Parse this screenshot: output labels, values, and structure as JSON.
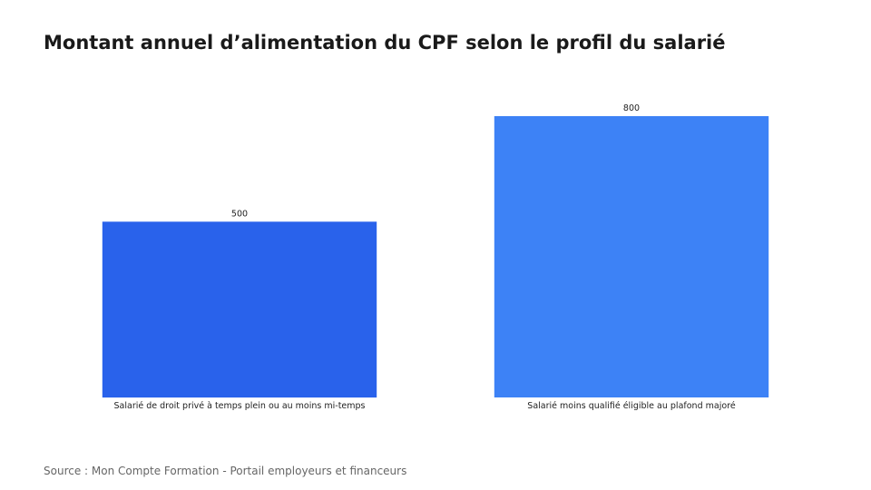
{
  "chart_data": {
    "type": "bar",
    "title": "Montant annuel d’alimentation du CPF selon le profil du salarié",
    "xlabel": "",
    "ylabel": "",
    "categories": [
      "Salarié de droit privé à temps plein ou au moins mi-temps",
      "Salarié moins qualifié éligible au plafond majoré"
    ],
    "values": [
      500,
      800
    ],
    "data_labels": [
      "500",
      "800"
    ],
    "colors": [
      "#2962eb",
      "#3d82f6"
    ],
    "ylim": [
      0,
      800
    ],
    "grid": false,
    "legend": "none"
  },
  "source": "Source : Mon Compte Formation - Portail employeurs et financeurs"
}
